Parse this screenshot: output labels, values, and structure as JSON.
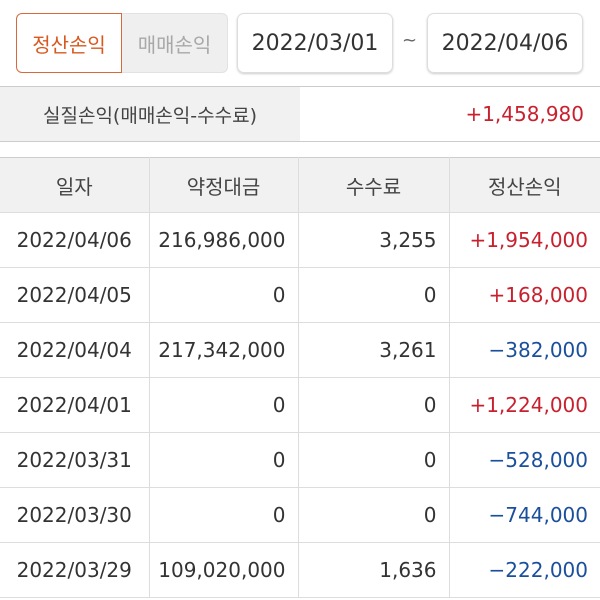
{
  "toggle": {
    "active": "정산손익",
    "inactive": "매매손익"
  },
  "period": {
    "start": "2022/03/01",
    "separator": "~",
    "end": "2022/04/06"
  },
  "summary": {
    "label": "실질손익(매매손익-수수료)",
    "value": "+1,458,980"
  },
  "colors": {
    "accent": "#d9581f",
    "positive": "#c8202e",
    "negative": "#1a4f9c"
  },
  "table": {
    "headers": [
      "일자",
      "약정대금",
      "수수료",
      "정산손익"
    ],
    "rows": [
      [
        "2022/04/06",
        "216,986,000",
        "3,255",
        "+1,954,000"
      ],
      [
        "2022/04/05",
        "0",
        "0",
        "+168,000"
      ],
      [
        "2022/04/04",
        "217,342,000",
        "3,261",
        "−382,000"
      ],
      [
        "2022/04/01",
        "0",
        "0",
        "+1,224,000"
      ],
      [
        "2022/03/31",
        "0",
        "0",
        "−528,000"
      ],
      [
        "2022/03/30",
        "0",
        "0",
        "−744,000"
      ],
      [
        "2022/03/29",
        "109,020,000",
        "1,636",
        "−222,000"
      ]
    ]
  }
}
